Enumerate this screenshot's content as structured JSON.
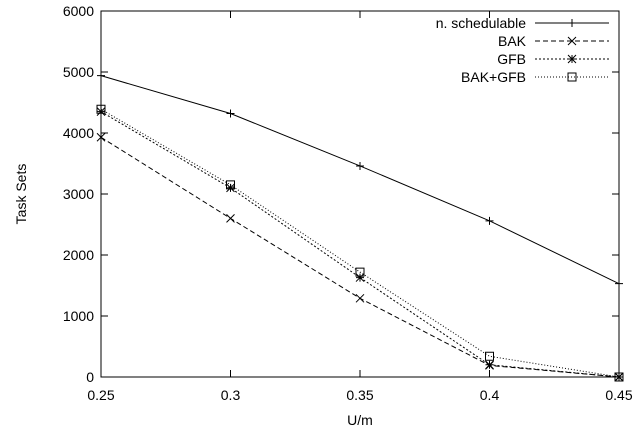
{
  "chart_data": {
    "type": "line",
    "xlabel": "U/m",
    "ylabel": "Task Sets",
    "xlim": [
      0.25,
      0.45
    ],
    "ylim": [
      0,
      6000
    ],
    "xticks": [
      "0.25",
      "0.3",
      "0.35",
      "0.4",
      "0.45"
    ],
    "yticks": [
      "0",
      "1000",
      "2000",
      "3000",
      "4000",
      "5000",
      "6000"
    ],
    "grid": false,
    "legend_position": "top-right",
    "x": [
      0.25,
      0.3,
      0.35,
      0.4,
      0.45
    ],
    "series": [
      {
        "name": "n. schedulable",
        "marker": "plus",
        "dash": "solid",
        "values": [
          4940,
          4320,
          3460,
          2560,
          1530
        ]
      },
      {
        "name": "BAK",
        "marker": "cross",
        "dash": "dashed",
        "values": [
          3930,
          2600,
          1290,
          190,
          0
        ]
      },
      {
        "name": "GFB",
        "marker": "star",
        "dash": "dotted",
        "values": [
          4350,
          3100,
          1630,
          200,
          0
        ]
      },
      {
        "name": "BAK+GFB",
        "marker": "square",
        "dash": "dotted-fine",
        "values": [
          4390,
          3150,
          1720,
          340,
          0
        ]
      }
    ]
  }
}
